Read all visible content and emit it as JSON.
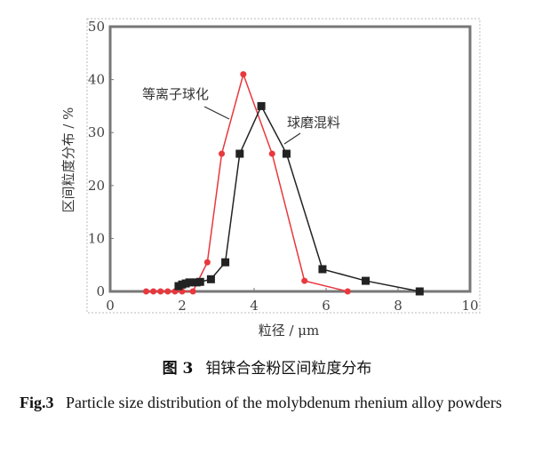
{
  "chart_data": {
    "type": "line",
    "xlabel": "粒径 / μm",
    "ylabel": "区间粒度分布 / %",
    "xlim": [
      0,
      10
    ],
    "ylim": [
      0,
      50
    ],
    "xticks": [
      "0",
      "2",
      "4",
      "6",
      "8",
      "10"
    ],
    "yticks": [
      "0",
      "10",
      "20",
      "30",
      "40",
      "50"
    ],
    "series": [
      {
        "name": "等离子球化",
        "color": "#e8383d",
        "marker": "circle",
        "x": [
          1.0,
          1.2,
          1.4,
          1.6,
          1.8,
          2.0,
          2.3,
          2.7,
          3.1,
          3.7,
          4.5,
          5.4,
          6.6
        ],
        "y": [
          0,
          0,
          0,
          0,
          0,
          0,
          0,
          5.5,
          26,
          41,
          26,
          2,
          0
        ]
      },
      {
        "name": "球磨混料",
        "color": "#222222",
        "marker": "square",
        "x": [
          1.9,
          2.0,
          2.1,
          2.2,
          2.4,
          2.5,
          2.8,
          3.2,
          3.6,
          4.2,
          4.9,
          5.9,
          7.1,
          8.6
        ],
        "y": [
          1,
          1.3,
          1.5,
          1.7,
          1.7,
          1.8,
          2.3,
          5.5,
          26,
          35,
          26,
          4.2,
          2,
          0
        ]
      }
    ]
  },
  "caption": {
    "cn_num": "图 3",
    "cn_text": "钼铼合金粉区间粒度分布",
    "en_num": "Fig.3",
    "en_text": "Particle size distribution of the molybdenum rhenium alloy powders"
  }
}
